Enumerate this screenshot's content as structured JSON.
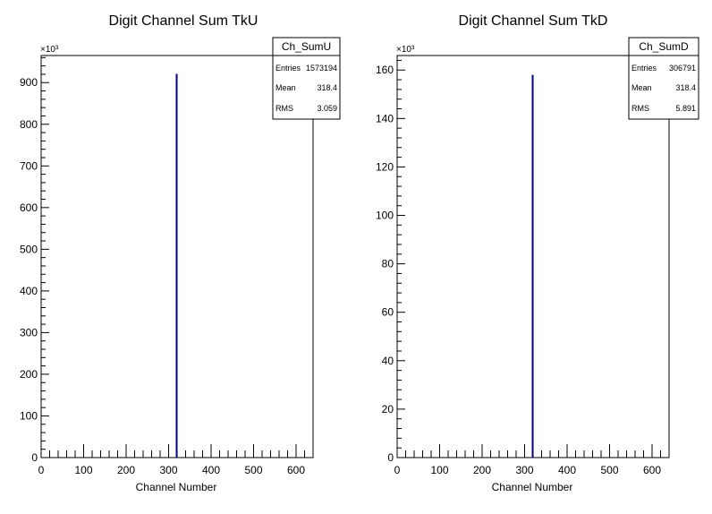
{
  "chart_data": [
    {
      "type": "histogram",
      "title": "Digit Channel Sum TkU",
      "xlabel": "Channel Number",
      "ylabel": "",
      "y_multiplier": "×10³",
      "xlim": [
        0,
        640
      ],
      "ylim": [
        0,
        965
      ],
      "x_ticks": [
        0,
        100,
        200,
        300,
        400,
        500,
        600
      ],
      "y_ticks": [
        0,
        100,
        200,
        300,
        400,
        500,
        600,
        700,
        800,
        900
      ],
      "bins": [
        {
          "x": 319,
          "value": 921
        }
      ],
      "line_color": "#000080",
      "stats": {
        "name": "Ch_SumU",
        "rows": [
          {
            "label": "Entries",
            "value": "1573194"
          },
          {
            "label": "Mean",
            "value": "318.4"
          },
          {
            "label": "RMS",
            "value": "3.059"
          }
        ]
      }
    },
    {
      "type": "histogram",
      "title": "Digit Channel Sum TkD",
      "xlabel": "Channel Number",
      "ylabel": "",
      "y_multiplier": "×10³",
      "xlim": [
        0,
        640
      ],
      "ylim": [
        0,
        166
      ],
      "x_ticks": [
        0,
        100,
        200,
        300,
        400,
        500,
        600
      ],
      "y_ticks": [
        0,
        20,
        40,
        60,
        80,
        100,
        120,
        140,
        160
      ],
      "bins": [
        {
          "x": 319,
          "value": 158
        }
      ],
      "line_color": "#000080",
      "stats": {
        "name": "Ch_SumD",
        "rows": [
          {
            "label": "Entries",
            "value": "306791"
          },
          {
            "label": "Mean",
            "value": "318.4"
          },
          {
            "label": "RMS",
            "value": "5.891"
          }
        ]
      }
    }
  ]
}
